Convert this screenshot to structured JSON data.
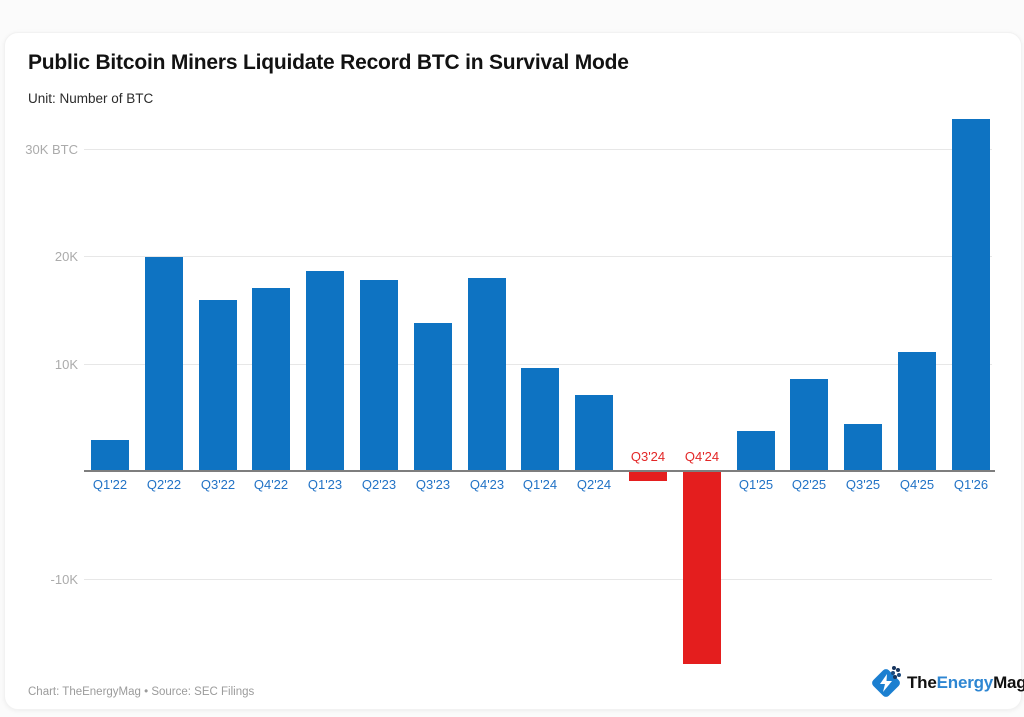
{
  "header": {
    "title": "Public Bitcoin Miners Liquidate Record BTC in Survival Mode",
    "unit_label": "Unit: Number of BTC"
  },
  "chart_data": {
    "type": "bar",
    "title": "Public Bitcoin Miners Liquidate Record BTC in Survival Mode",
    "unit": "BTC",
    "categories": [
      "Q1'22",
      "Q2'22",
      "Q3'22",
      "Q4'22",
      "Q1'23",
      "Q2'23",
      "Q3'23",
      "Q4'23",
      "Q1'24",
      "Q2'24",
      "Q3'24",
      "Q4'24",
      "Q1'25",
      "Q2'25",
      "Q3'25",
      "Q4'25",
      "Q1'26"
    ],
    "values": [
      2900,
      19900,
      15900,
      17000,
      18600,
      17800,
      13800,
      18000,
      9600,
      7100,
      -800,
      -17900,
      3700,
      8600,
      4400,
      11100,
      32700
    ],
    "y_ticks": [
      {
        "value": 30000,
        "label": "30K BTC"
      },
      {
        "value": 20000,
        "label": "20K"
      },
      {
        "value": 10000,
        "label": "10K"
      },
      {
        "value": -10000,
        "label": "-10K"
      }
    ],
    "ylim": [
      -18500,
      33500
    ],
    "grid": "horizontal",
    "legend": "none",
    "colors": {
      "positive_bar": "#0e73c2",
      "negative_bar": "#e41e1e",
      "positive_label": "#2273c6",
      "negative_label": "#e32727",
      "gridline": "#e7e7e7",
      "axis_line": "#7e7e7e",
      "y_tick_label": "#ababab"
    }
  },
  "footer": {
    "credit": "Chart: TheEnergyMag • Source: SEC Filings"
  },
  "logo": {
    "icon": "lightning-bolt-icon",
    "parts": {
      "the": "The",
      "energy": "Energy",
      "mag": "Mag"
    },
    "brand_blue": "#2e86d2",
    "icon_blue": "#1b7fd0"
  }
}
